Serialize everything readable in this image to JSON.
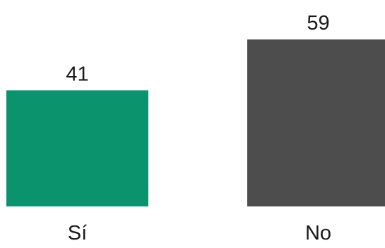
{
  "chart_data": {
    "type": "bar",
    "categories": [
      "Sí",
      "No"
    ],
    "values": [
      41,
      59
    ],
    "colors": [
      "#0a936c",
      "#4d4d4d"
    ],
    "title": "",
    "xlabel": "",
    "ylabel": "",
    "ylim": [
      0,
      59
    ],
    "grid": false,
    "legend": "none"
  }
}
